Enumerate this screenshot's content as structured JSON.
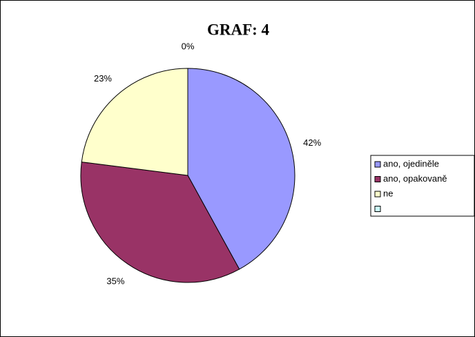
{
  "chart_data": {
    "type": "pie",
    "title": "GRAF: 4",
    "categories": [
      "ano, ojediněle",
      "ano, opakovaně",
      "ne",
      null
    ],
    "values": [
      42,
      35,
      23,
      0
    ],
    "value_labels": [
      "42%",
      "35%",
      "23%",
      "0%"
    ],
    "colors": [
      "#9999ff",
      "#993366",
      "#ffffcc",
      "#ccffff"
    ],
    "legend": "right"
  }
}
